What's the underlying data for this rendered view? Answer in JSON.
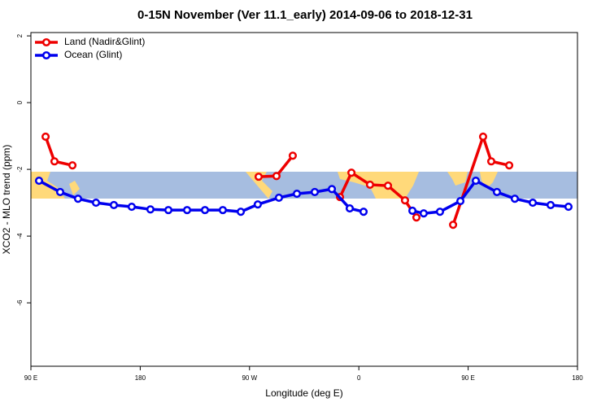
{
  "chart_data": {
    "type": "line",
    "title": "0-15N November (Ver 11.1_early)   2014-09-06 to 2018-12-31",
    "xlabel": "Longitude (deg E)",
    "ylabel": "XCO2 - MLO trend (ppm)",
    "xlim": [
      90,
      540
    ],
    "ylim": [
      -7.9,
      2.1
    ],
    "xticks": [
      {
        "value": 90,
        "label": "90 E"
      },
      180,
      {
        "value": 270,
        "label": "90 W"
      },
      {
        "value": 360,
        "label": "0"
      },
      {
        "value": 450,
        "label": "90 E"
      },
      {
        "value": 540,
        "label": "180"
      }
    ],
    "yticks": [
      2,
      0,
      -2,
      -4,
      -6
    ],
    "legend": "top-left",
    "series": [
      {
        "name": "Land (Nadir&Glint)",
        "color": "#ee0000",
        "x": [
          102.1,
          109.4,
          124.2,
          200,
          277.5,
          292.2,
          305.6,
          325,
          344.5,
          353.9,
          369.2,
          384.0,
          398.0,
          407.4,
          420,
          437.6,
          462.3,
          469.0,
          483.8
        ],
        "values": [
          -1.02,
          -1.76,
          -1.88,
          null,
          -2.22,
          -2.2,
          -1.59,
          null,
          -2.83,
          -2.1,
          -2.46,
          -2.49,
          -2.93,
          -3.44,
          null,
          -3.66,
          -1.02,
          -1.76,
          -1.88
        ]
      },
      {
        "name": "Ocean (Glint)",
        "color": "#0000ee",
        "x": [
          96.7,
          114.1,
          128.8,
          143.6,
          158.3,
          173.0,
          188.4,
          203.2,
          218.6,
          233.3,
          248.0,
          262.8,
          276.8,
          294.2,
          309.0,
          323.7,
          337.8,
          352.5,
          363.9,
          384,
          404.1,
          413.4,
          426.8,
          443.6,
          456.3,
          473.7,
          488.4,
          503.2,
          517.9,
          532.6
        ],
        "values": [
          -2.34,
          -2.68,
          -2.88,
          -3.0,
          -3.07,
          -3.12,
          -3.2,
          -3.22,
          -3.22,
          -3.22,
          -3.22,
          -3.27,
          -3.05,
          -2.85,
          -2.73,
          -2.68,
          -2.59,
          -3.17,
          -3.27,
          null,
          -3.24,
          -3.32,
          -3.27,
          -2.95,
          -2.34,
          -2.68,
          -2.88,
          -3.0,
          -3.07,
          -3.12
        ]
      }
    ]
  }
}
